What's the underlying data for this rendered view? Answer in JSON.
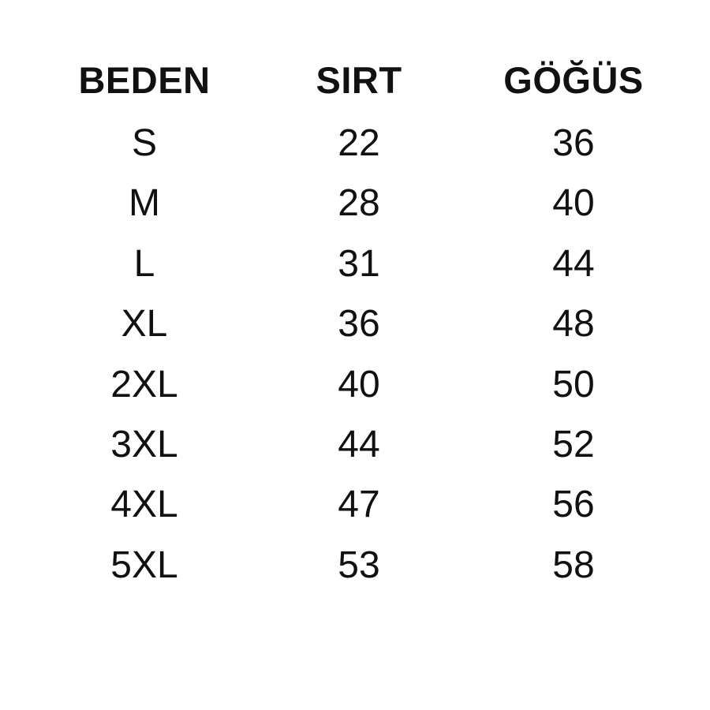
{
  "table": {
    "headers": [
      "BEDEN",
      "SIRT",
      "GÖĞÜS"
    ],
    "rows": [
      [
        "S",
        "22",
        "36"
      ],
      [
        "M",
        "28",
        "40"
      ],
      [
        "L",
        "31",
        "44"
      ],
      [
        "XL",
        "36",
        "48"
      ],
      [
        "2XL",
        "40",
        "50"
      ],
      [
        "3XL",
        "44",
        "52"
      ],
      [
        "4XL",
        "47",
        "56"
      ],
      [
        "5XL",
        "53",
        "58"
      ]
    ]
  }
}
